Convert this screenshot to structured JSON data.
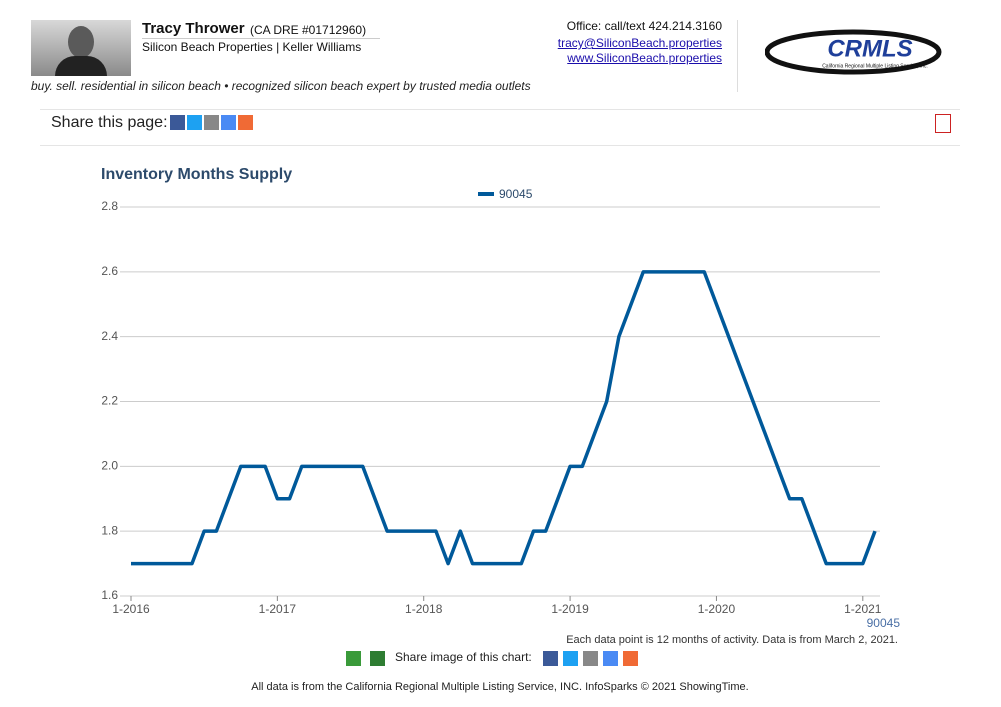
{
  "header": {
    "name": "Tracy Thrower",
    "license": "(CA DRE #01712960)",
    "company": "Silicon Beach Properties | Keller Williams",
    "phone": "Office: call/text 424.214.3160",
    "email": "tracy@SiliconBeach.properties",
    "website": "www.SiliconBeach.properties",
    "tagline": "buy. sell. residential in silicon beach • recognized silicon beach expert by trusted media outlets",
    "logo": "CRMLS",
    "logo_subtitle": "California Regional Multiple Listing Service, Inc."
  },
  "share_page": "Share this page:",
  "chart_data": {
    "type": "line",
    "title": "Inventory Months Supply",
    "categories": [
      "1-2016",
      null,
      null,
      null,
      null,
      null,
      null,
      null,
      null,
      null,
      null,
      null,
      "1-2017",
      null,
      null,
      null,
      null,
      null,
      null,
      null,
      null,
      null,
      null,
      null,
      "1-2018",
      null,
      null,
      null,
      null,
      null,
      null,
      null,
      null,
      null,
      null,
      null,
      "1-2019",
      null,
      null,
      null,
      null,
      null,
      null,
      null,
      null,
      null,
      null,
      null,
      "1-2020",
      null,
      null,
      null,
      null,
      null,
      null,
      null,
      null,
      null,
      null,
      null,
      "1-2021",
      null
    ],
    "series": [
      {
        "name": "90045",
        "color": "#00599a",
        "values": [
          1.7,
          1.7,
          1.7,
          1.7,
          1.7,
          1.7,
          1.8,
          1.8,
          1.9,
          2.0,
          2.0,
          2.0,
          1.9,
          1.9,
          2.0,
          2.0,
          2.0,
          2.0,
          2.0,
          2.0,
          1.9,
          1.8,
          1.8,
          1.8,
          1.8,
          1.8,
          1.7,
          1.8,
          1.7,
          1.7,
          1.7,
          1.7,
          1.7,
          1.8,
          1.8,
          1.9,
          2.0,
          2.0,
          2.1,
          2.2,
          2.4,
          2.5,
          2.6,
          2.6,
          2.6,
          2.6,
          2.6,
          2.6,
          2.5,
          2.4,
          2.3,
          2.2,
          2.1,
          2.0,
          1.9,
          1.9,
          1.8,
          1.7,
          1.7,
          1.7,
          1.7,
          1.8
        ]
      }
    ],
    "ylim": [
      1.6,
      2.8
    ],
    "yticks": [
      1.6,
      1.8,
      {
        "value": 2,
        "label": "2.0"
      },
      2.2,
      2.4,
      2.6,
      2.8
    ],
    "grid": true,
    "note": "Each data point is 12 months of activity. Data is from March 2, 2021."
  },
  "footer": {
    "share_image": "Share image of this chart:",
    "source": "All data is from the California Regional Multiple Listing Service, INC. InfoSparks © 2021 ShowingTime."
  }
}
